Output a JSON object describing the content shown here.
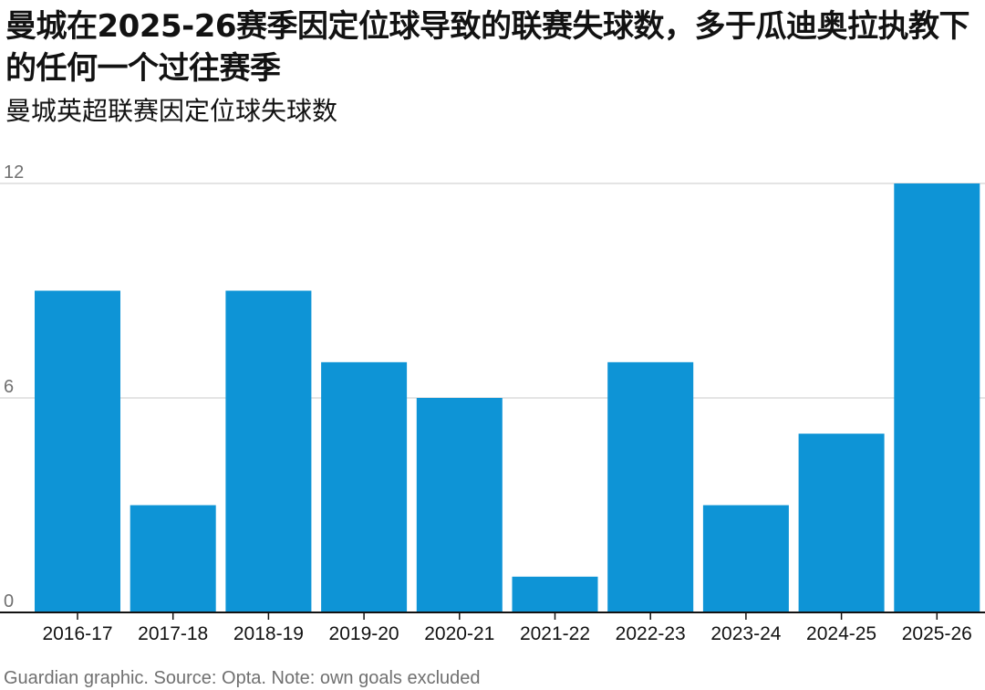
{
  "title": "曼城在2025-26赛季因定位球导致的联赛失球数，多于瓜迪奥拉执教下的任何一个过往赛季",
  "subtitle": "曼城英超联赛因定位球失球数",
  "footer": "Guardian graphic. Source: Opta. Note: own goals excluded",
  "colors": {
    "bar": "#0e94d6",
    "grid": "#dcdcdc",
    "axis": "#121212",
    "text": "#121212",
    "muted": "#707070"
  },
  "chart_data": {
    "type": "bar",
    "title": "曼城在2025-26赛季因定位球导致的联赛失球数，多于瓜迪奥拉执教下的任何一个过往赛季",
    "subtitle": "曼城英超联赛因定位球失球数",
    "xlabel": "",
    "ylabel": "",
    "categories": [
      "2016-17",
      "2017-18",
      "2018-19",
      "2019-20",
      "2020-21",
      "2021-22",
      "2022-23",
      "2023-24",
      "2024-25",
      "2025-26"
    ],
    "values": [
      9,
      3,
      9,
      7,
      6,
      1,
      7,
      3,
      5,
      12
    ],
    "ylim": [
      0,
      12
    ],
    "yticks": [
      0,
      6,
      12
    ],
    "grid": true,
    "legend": "none"
  }
}
